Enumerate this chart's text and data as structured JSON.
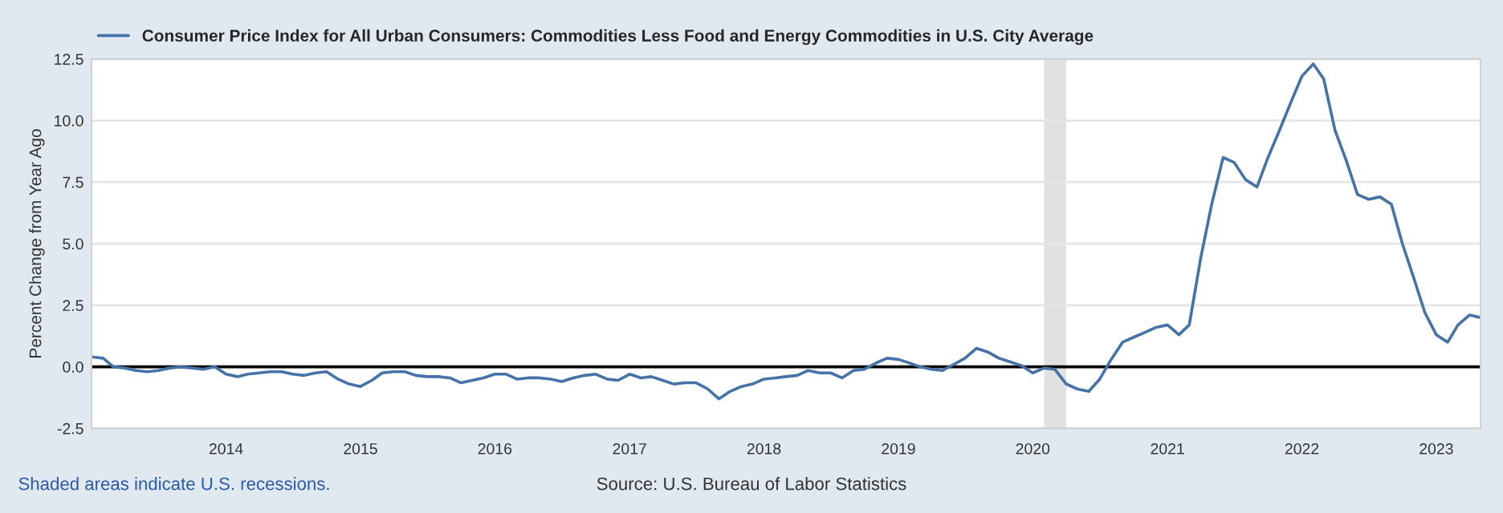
{
  "chart_data": {
    "type": "line",
    "ylabel": "Percent Change from Year Ago",
    "x": [
      "2013-01",
      "2013-02",
      "2013-03",
      "2013-04",
      "2013-05",
      "2013-06",
      "2013-07",
      "2013-08",
      "2013-09",
      "2013-10",
      "2013-11",
      "2013-12",
      "2014-01",
      "2014-02",
      "2014-03",
      "2014-04",
      "2014-05",
      "2014-06",
      "2014-07",
      "2014-08",
      "2014-09",
      "2014-10",
      "2014-11",
      "2014-12",
      "2015-01",
      "2015-02",
      "2015-03",
      "2015-04",
      "2015-05",
      "2015-06",
      "2015-07",
      "2015-08",
      "2015-09",
      "2015-10",
      "2015-11",
      "2015-12",
      "2016-01",
      "2016-02",
      "2016-03",
      "2016-04",
      "2016-05",
      "2016-06",
      "2016-07",
      "2016-08",
      "2016-09",
      "2016-10",
      "2016-11",
      "2016-12",
      "2017-01",
      "2017-02",
      "2017-03",
      "2017-04",
      "2017-05",
      "2017-06",
      "2017-07",
      "2017-08",
      "2017-09",
      "2017-10",
      "2017-11",
      "2017-12",
      "2018-01",
      "2018-02",
      "2018-03",
      "2018-04",
      "2018-05",
      "2018-06",
      "2018-07",
      "2018-08",
      "2018-09",
      "2018-10",
      "2018-11",
      "2018-12",
      "2019-01",
      "2019-02",
      "2019-03",
      "2019-04",
      "2019-05",
      "2019-06",
      "2019-07",
      "2019-08",
      "2019-09",
      "2019-10",
      "2019-11",
      "2019-12",
      "2020-01",
      "2020-02",
      "2020-03",
      "2020-04",
      "2020-05",
      "2020-06",
      "2020-07",
      "2020-08",
      "2020-09",
      "2020-10",
      "2020-11",
      "2020-12",
      "2021-01",
      "2021-02",
      "2021-03",
      "2021-04",
      "2021-05",
      "2021-06",
      "2021-07",
      "2021-08",
      "2021-09",
      "2021-10",
      "2021-11",
      "2021-12",
      "2022-01",
      "2022-02",
      "2022-03",
      "2022-04",
      "2022-05",
      "2022-06",
      "2022-07",
      "2022-08",
      "2022-09",
      "2022-10",
      "2022-11",
      "2022-12",
      "2023-01",
      "2023-02",
      "2023-03",
      "2023-04",
      "2023-05"
    ],
    "series": [
      {
        "name": "Consumer Price Index for All Urban Consumers: Commodities Less Food and Energy Commodities in U.S. City Average",
        "color": "#4572a7",
        "values": [
          0.4,
          0.35,
          0.0,
          -0.05,
          -0.15,
          -0.2,
          -0.15,
          -0.05,
          0.0,
          -0.05,
          -0.1,
          0.0,
          -0.3,
          -0.4,
          -0.3,
          -0.25,
          -0.2,
          -0.2,
          -0.3,
          -0.35,
          -0.25,
          -0.2,
          -0.5,
          -0.7,
          -0.8,
          -0.55,
          -0.25,
          -0.2,
          -0.2,
          -0.35,
          -0.4,
          -0.4,
          -0.45,
          -0.65,
          -0.55,
          -0.45,
          -0.3,
          -0.3,
          -0.5,
          -0.45,
          -0.45,
          -0.5,
          -0.6,
          -0.45,
          -0.35,
          -0.3,
          -0.5,
          -0.55,
          -0.3,
          -0.45,
          -0.4,
          -0.55,
          -0.7,
          -0.65,
          -0.65,
          -0.9,
          -1.3,
          -1.0,
          -0.8,
          -0.7,
          -0.5,
          -0.45,
          -0.4,
          -0.35,
          -0.15,
          -0.25,
          -0.25,
          -0.45,
          -0.15,
          -0.1,
          0.15,
          0.35,
          0.3,
          0.15,
          0.0,
          -0.1,
          -0.15,
          0.1,
          0.35,
          0.75,
          0.6,
          0.35,
          0.2,
          0.05,
          -0.25,
          -0.05,
          -0.1,
          -0.7,
          -0.9,
          -1.0,
          -0.5,
          0.3,
          1.0,
          1.2,
          1.4,
          1.6,
          1.7,
          1.3,
          1.7,
          4.4,
          6.6,
          8.5,
          8.3,
          7.6,
          7.3,
          8.5,
          9.6,
          10.7,
          11.8,
          12.3,
          11.7,
          9.6,
          8.4,
          7.0,
          6.8,
          6.9,
          6.6,
          5.0,
          3.6,
          2.2,
          1.3,
          1.0,
          1.7,
          2.1,
          2.0
        ]
      }
    ],
    "xlim": [
      "2013-01",
      "2023-05"
    ],
    "xticks": [
      "2014",
      "2015",
      "2016",
      "2017",
      "2018",
      "2019",
      "2020",
      "2021",
      "2022",
      "2023"
    ],
    "ylim": [
      -2.5,
      12.5
    ],
    "yticks": [
      {
        "value": -2.5,
        "label": "-2.5"
      },
      {
        "value": 0,
        "label": "0.0"
      },
      {
        "value": 2.5,
        "label": "2.5"
      },
      {
        "value": 5,
        "label": "5.0"
      },
      {
        "value": 7.5,
        "label": "7.5"
      },
      {
        "value": 10,
        "label": "10.0"
      },
      {
        "value": 12.5,
        "label": "12.5"
      }
    ],
    "ref_lines": [
      {
        "axis": "y",
        "value": 0,
        "color": "#000000"
      }
    ],
    "bands": [
      {
        "axis": "x",
        "from": "2020-02",
        "to": "2020-04",
        "color": "#e1e1e1"
      }
    ],
    "grid": "y",
    "legend": "top",
    "annotations": [
      "Shaded areas indicate U.S. recessions.",
      "Source: U.S. Bureau of Labor Statistics"
    ]
  }
}
